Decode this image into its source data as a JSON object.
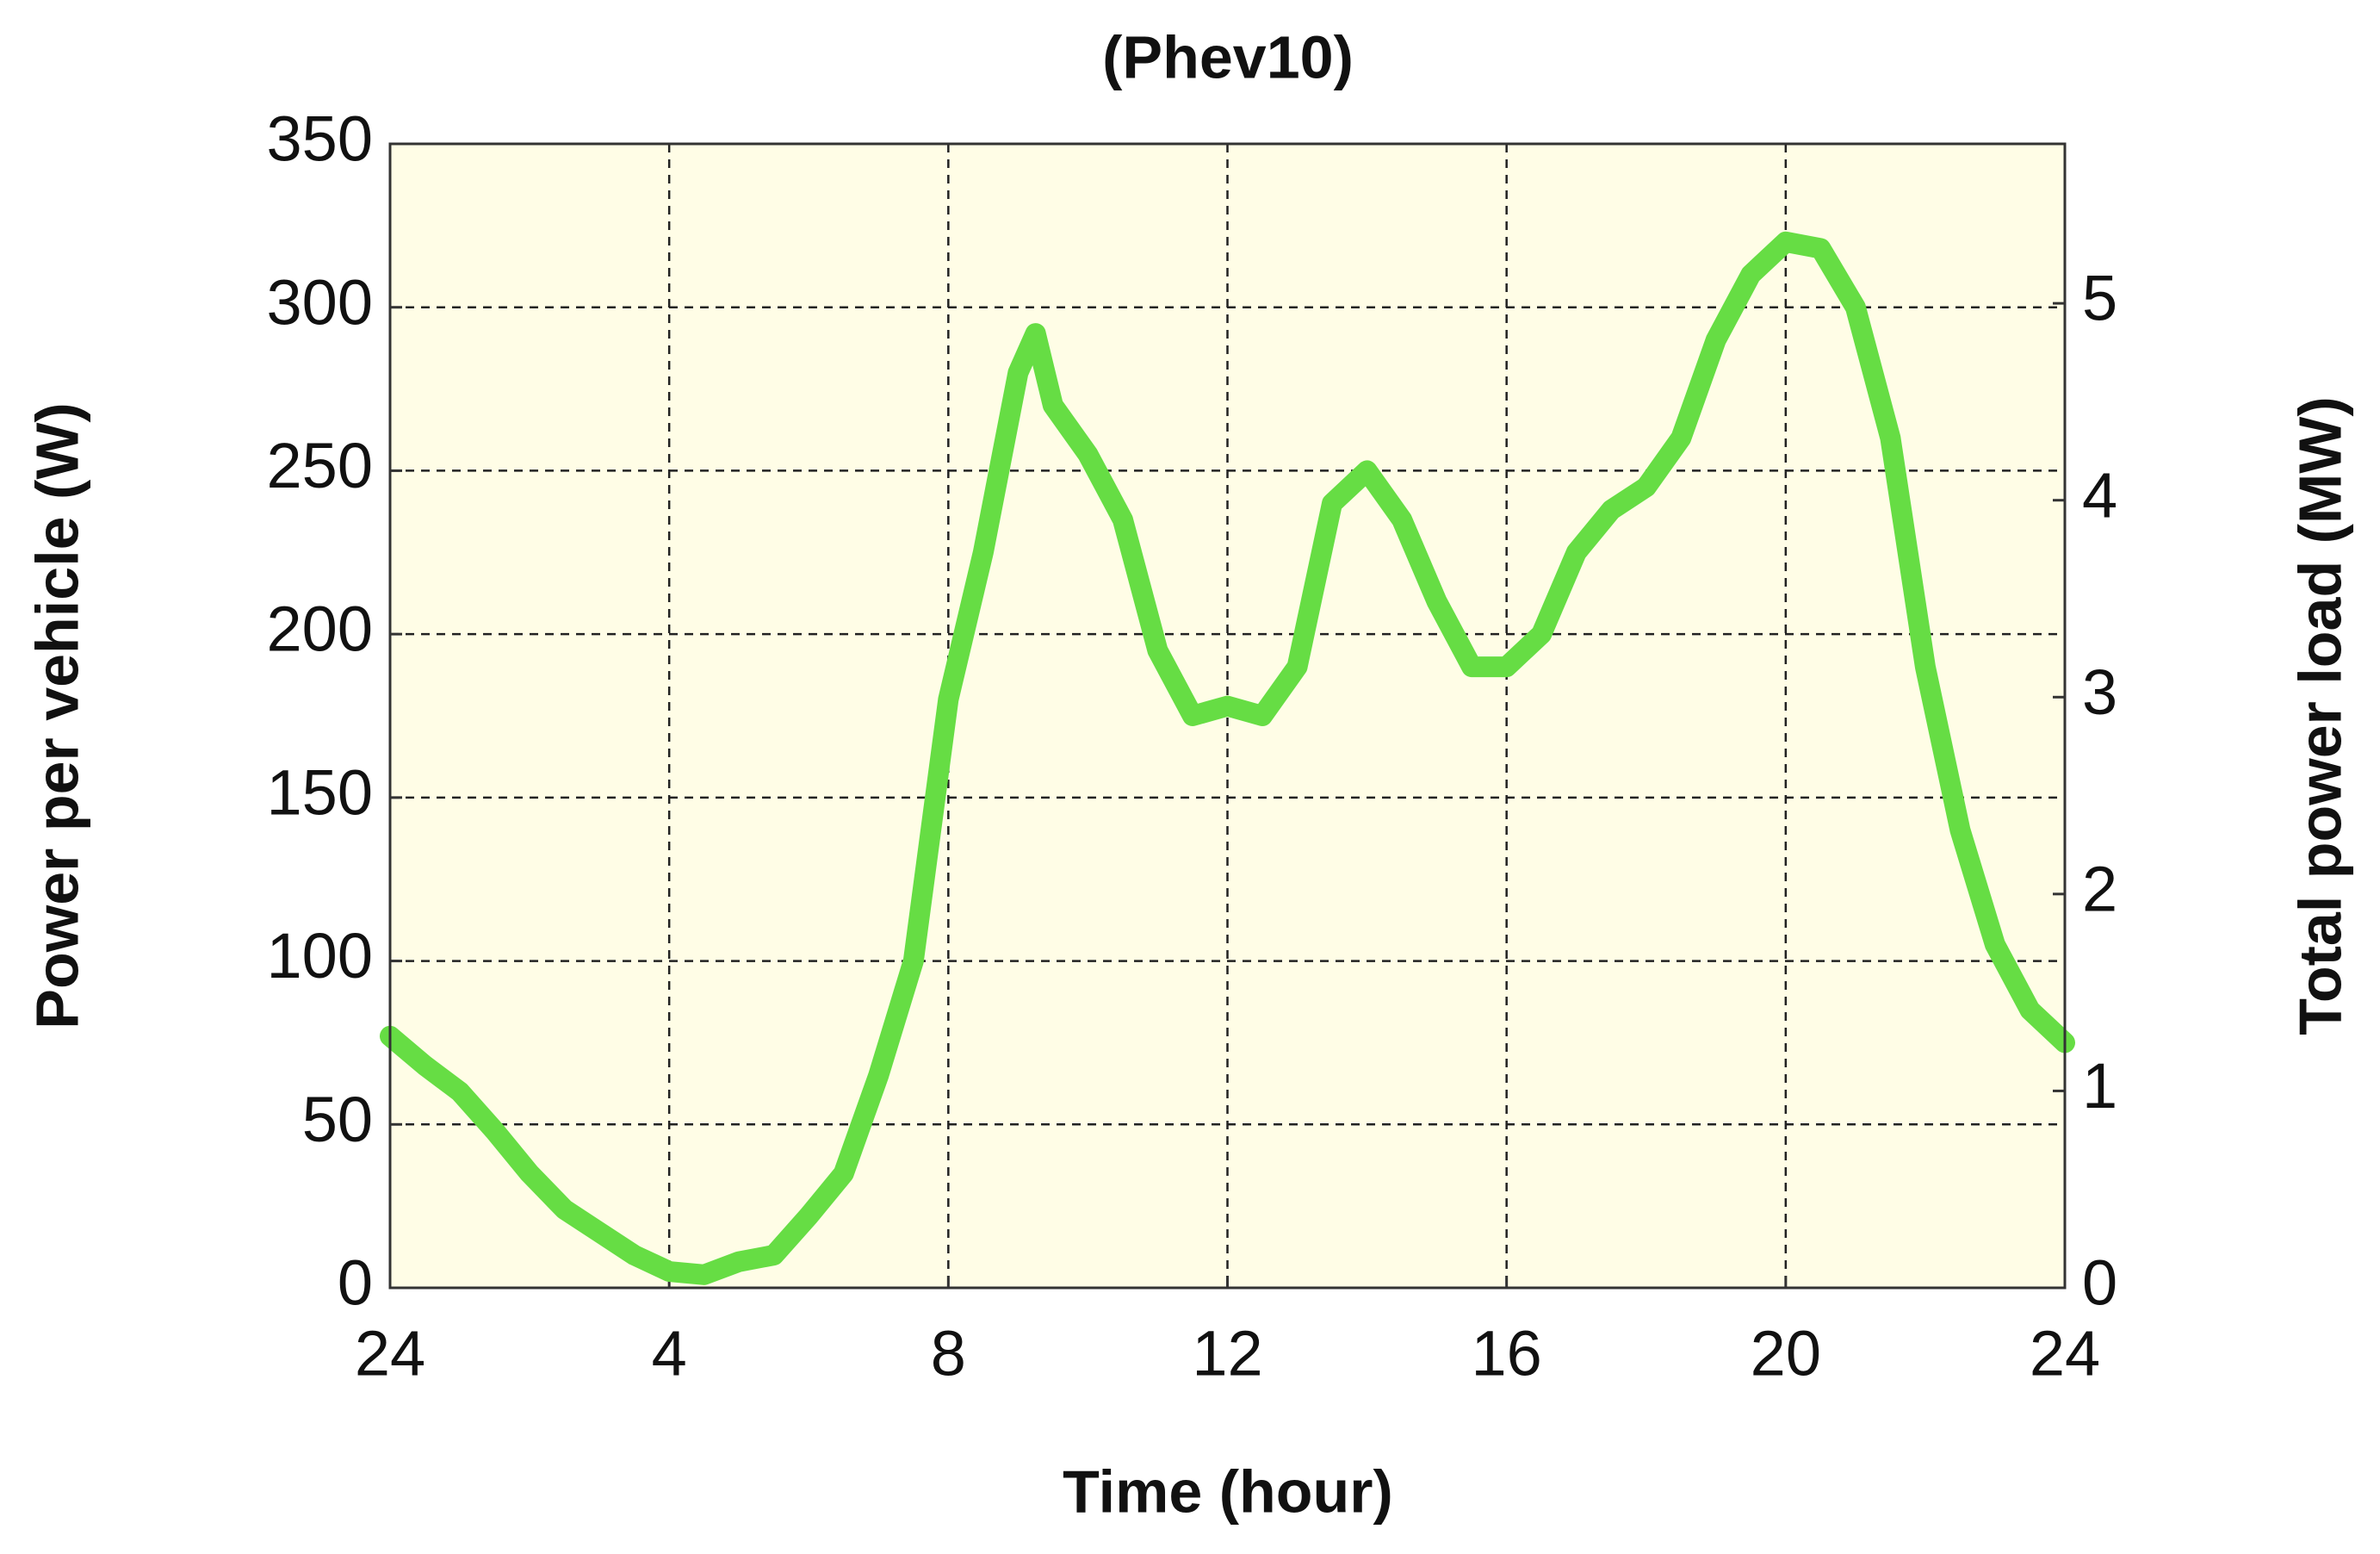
{
  "chart_data": {
    "type": "line",
    "title": "(Phev10)",
    "x_label": "Time (hour)",
    "y_label": "Power per vehicle (W)",
    "y2_label": "Total power load (MW)",
    "x": [
      0,
      0.5,
      1,
      1.5,
      2,
      2.5,
      3,
      3.5,
      4,
      4.5,
      5,
      5.5,
      6,
      6.5,
      7,
      7.5,
      8,
      8.5,
      9,
      9.25,
      9.5,
      10,
      10.5,
      11,
      11.5,
      12,
      12.5,
      13,
      13.5,
      14,
      14.5,
      15,
      15.5,
      16,
      16.5,
      17,
      17.5,
      18,
      18.5,
      19,
      19.5,
      20,
      20.5,
      21,
      21.5,
      22,
      22.5,
      23,
      23.5,
      24
    ],
    "series": [
      {
        "color": "#66dd44",
        "values": [
          77,
          68,
          60,
          48,
          35,
          24,
          17,
          10,
          5,
          4,
          8,
          10,
          22,
          35,
          65,
          100,
          180,
          225,
          280,
          292,
          270,
          255,
          235,
          195,
          175,
          178,
          175,
          190,
          240,
          250,
          235,
          210,
          190,
          190,
          200,
          225,
          238,
          245,
          260,
          290,
          310,
          320,
          318,
          300,
          260,
          190,
          140,
          105,
          85,
          75
        ]
      }
    ],
    "xlim": [
      0,
      24
    ],
    "xticks": [
      {
        "value": 0,
        "label": "24"
      },
      4,
      8,
      12,
      16,
      20,
      24
    ],
    "ylim": [
      0,
      350
    ],
    "yticks": [
      0,
      50,
      100,
      150,
      200,
      250,
      300,
      350
    ],
    "y2lim": [
      0,
      5.81
    ],
    "y2ticks": [
      0,
      1,
      2,
      3,
      4,
      5
    ],
    "grid": true
  }
}
